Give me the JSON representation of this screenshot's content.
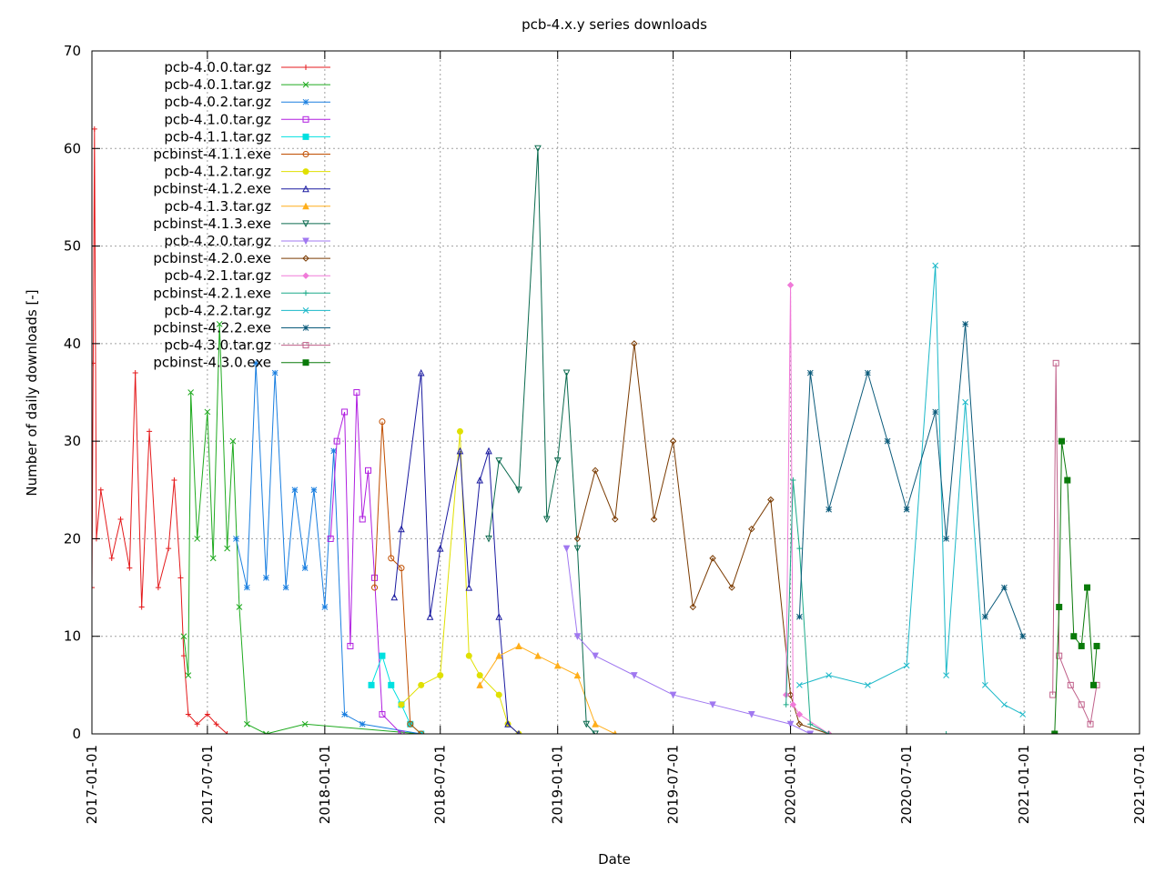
{
  "chart_data": {
    "type": "line",
    "title": "pcb-4.x.y series downloads",
    "xlabel": "Date",
    "ylabel": "Number of daily downloads [-]",
    "xlim": [
      "2017-01-01",
      "2021-07-01"
    ],
    "ylim": [
      0,
      70
    ],
    "x_ticks": [
      "2017-01-01",
      "2017-07-01",
      "2018-01-01",
      "2018-07-01",
      "2019-01-01",
      "2019-07-01",
      "2020-01-01",
      "2020-07-01",
      "2021-01-01",
      "2021-07-01"
    ],
    "y_ticks": [
      "0",
      "10",
      "20",
      "30",
      "40",
      "50",
      "60",
      "70"
    ],
    "grid": true,
    "legend_position": "top-left",
    "series": [
      {
        "name": "pcb-4.0.0.tar.gz",
        "color": "#e41a1c",
        "marker": "plus",
        "points": [
          [
            "2016-12-25",
            1
          ],
          [
            "2017-01-01",
            15
          ],
          [
            "2017-01-03",
            38
          ],
          [
            "2017-01-05",
            62
          ],
          [
            "2017-01-08",
            20
          ],
          [
            "2017-01-15",
            25
          ],
          [
            "2017-02-01",
            18
          ],
          [
            "2017-02-15",
            22
          ],
          [
            "2017-03-01",
            17
          ],
          [
            "2017-03-10",
            37
          ],
          [
            "2017-03-20",
            13
          ],
          [
            "2017-04-01",
            31
          ],
          [
            "2017-04-15",
            15
          ],
          [
            "2017-05-01",
            19
          ],
          [
            "2017-05-10",
            26
          ],
          [
            "2017-05-20",
            16
          ],
          [
            "2017-05-25",
            8
          ],
          [
            "2017-06-01",
            2
          ],
          [
            "2017-06-15",
            1
          ],
          [
            "2017-07-01",
            2
          ],
          [
            "2017-07-15",
            1
          ],
          [
            "2017-08-01",
            0
          ]
        ]
      },
      {
        "name": "pcb-4.0.1.tar.gz",
        "color": "#1faa1f",
        "marker": "x",
        "points": [
          [
            "2017-05-25",
            10
          ],
          [
            "2017-06-01",
            6
          ],
          [
            "2017-06-05",
            35
          ],
          [
            "2017-06-15",
            20
          ],
          [
            "2017-07-01",
            33
          ],
          [
            "2017-07-10",
            18
          ],
          [
            "2017-07-20",
            42
          ],
          [
            "2017-08-01",
            19
          ],
          [
            "2017-08-10",
            30
          ],
          [
            "2017-08-20",
            13
          ],
          [
            "2017-09-01",
            1
          ],
          [
            "2017-10-01",
            0
          ],
          [
            "2017-12-01",
            1
          ],
          [
            "2018-06-01",
            0
          ]
        ]
      },
      {
        "name": "pcb-4.0.2.tar.gz",
        "color": "#1a7fe0",
        "marker": "star",
        "points": [
          [
            "2017-08-15",
            20
          ],
          [
            "2017-09-01",
            15
          ],
          [
            "2017-09-15",
            38
          ],
          [
            "2017-10-01",
            16
          ],
          [
            "2017-10-15",
            37
          ],
          [
            "2017-11-01",
            15
          ],
          [
            "2017-11-15",
            25
          ],
          [
            "2017-12-01",
            17
          ],
          [
            "2017-12-15",
            25
          ],
          [
            "2018-01-01",
            13
          ],
          [
            "2018-01-15",
            29
          ],
          [
            "2018-02-01",
            2
          ],
          [
            "2018-03-01",
            1
          ],
          [
            "2018-06-01",
            0
          ]
        ]
      },
      {
        "name": "pcb-4.1.0.tar.gz",
        "color": "#b01ee0",
        "marker": "box",
        "points": [
          [
            "2018-01-10",
            20
          ],
          [
            "2018-01-20",
            30
          ],
          [
            "2018-02-01",
            33
          ],
          [
            "2018-02-10",
            9
          ],
          [
            "2018-02-20",
            35
          ],
          [
            "2018-03-01",
            22
          ],
          [
            "2018-03-10",
            27
          ],
          [
            "2018-03-20",
            16
          ],
          [
            "2018-04-01",
            2
          ],
          [
            "2018-05-01",
            0
          ]
        ]
      },
      {
        "name": "pcb-4.1.1.tar.gz",
        "color": "#00e0e0",
        "marker": "fbox",
        "points": [
          [
            "2018-03-15",
            5
          ],
          [
            "2018-04-01",
            8
          ],
          [
            "2018-04-15",
            5
          ],
          [
            "2018-05-01",
            3
          ],
          [
            "2018-05-15",
            1
          ],
          [
            "2018-06-01",
            0
          ]
        ]
      },
      {
        "name": "pcbinst-4.1.1.exe",
        "color": "#c04e00",
        "marker": "circle",
        "points": [
          [
            "2018-03-20",
            15
          ],
          [
            "2018-04-01",
            32
          ],
          [
            "2018-04-15",
            18
          ],
          [
            "2018-05-01",
            17
          ],
          [
            "2018-05-15",
            1
          ],
          [
            "2018-06-01",
            0
          ]
        ]
      },
      {
        "name": "pcb-4.1.2.tar.gz",
        "color": "#e0e000",
        "marker": "fcircle",
        "points": [
          [
            "2018-05-01",
            3
          ],
          [
            "2018-06-01",
            5
          ],
          [
            "2018-07-01",
            6
          ],
          [
            "2018-08-01",
            31
          ],
          [
            "2018-08-15",
            8
          ],
          [
            "2018-09-01",
            6
          ],
          [
            "2018-10-01",
            4
          ],
          [
            "2018-10-15",
            1
          ],
          [
            "2018-11-01",
            0
          ]
        ]
      },
      {
        "name": "pcbinst-4.1.2.exe",
        "color": "#1a1aa0",
        "marker": "tri",
        "points": [
          [
            "2018-04-20",
            14
          ],
          [
            "2018-05-01",
            21
          ],
          [
            "2018-06-01",
            37
          ],
          [
            "2018-06-15",
            12
          ],
          [
            "2018-07-01",
            19
          ],
          [
            "2018-08-01",
            29
          ],
          [
            "2018-08-15",
            15
          ],
          [
            "2018-09-01",
            26
          ],
          [
            "2018-09-15",
            29
          ],
          [
            "2018-10-01",
            12
          ],
          [
            "2018-10-15",
            1
          ],
          [
            "2018-11-01",
            0
          ]
        ]
      },
      {
        "name": "pcb-4.1.3.tar.gz",
        "color": "#ffae1a",
        "marker": "ftri",
        "points": [
          [
            "2018-09-01",
            5
          ],
          [
            "2018-10-01",
            8
          ],
          [
            "2018-11-01",
            9
          ],
          [
            "2018-12-01",
            8
          ],
          [
            "2019-01-01",
            7
          ],
          [
            "2019-02-01",
            6
          ],
          [
            "2019-03-01",
            1
          ],
          [
            "2019-04-01",
            0
          ]
        ]
      },
      {
        "name": "pcbinst-4.1.3.exe",
        "color": "#0a6a4e",
        "marker": "dtri",
        "points": [
          [
            "2018-09-15",
            20
          ],
          [
            "2018-10-01",
            28
          ],
          [
            "2018-11-01",
            25
          ],
          [
            "2018-12-01",
            60
          ],
          [
            "2018-12-15",
            22
          ],
          [
            "2019-01-01",
            28
          ],
          [
            "2019-01-15",
            37
          ],
          [
            "2019-02-01",
            19
          ],
          [
            "2019-02-15",
            1
          ],
          [
            "2019-03-01",
            0
          ]
        ]
      },
      {
        "name": "pcb-4.2.0.tar.gz",
        "color": "#a078f0",
        "marker": "fdtri",
        "points": [
          [
            "2019-01-15",
            19
          ],
          [
            "2019-02-01",
            10
          ],
          [
            "2019-03-01",
            8
          ],
          [
            "2019-05-01",
            6
          ],
          [
            "2019-07-01",
            4
          ],
          [
            "2019-09-01",
            3
          ],
          [
            "2019-11-01",
            2
          ],
          [
            "2020-01-01",
            1
          ],
          [
            "2020-02-01",
            0
          ]
        ]
      },
      {
        "name": "pcbinst-4.2.0.exe",
        "color": "#7a3a00",
        "marker": "diamond",
        "points": [
          [
            "2019-02-01",
            20
          ],
          [
            "2019-03-01",
            27
          ],
          [
            "2019-04-01",
            22
          ],
          [
            "2019-05-01",
            40
          ],
          [
            "2019-06-01",
            22
          ],
          [
            "2019-07-01",
            30
          ],
          [
            "2019-08-01",
            13
          ],
          [
            "2019-09-01",
            18
          ],
          [
            "2019-10-01",
            15
          ],
          [
            "2019-11-01",
            21
          ],
          [
            "2019-12-01",
            24
          ],
          [
            "2020-01-01",
            4
          ],
          [
            "2020-01-15",
            1
          ],
          [
            "2020-03-01",
            0
          ]
        ]
      },
      {
        "name": "pcb-4.2.1.tar.gz",
        "color": "#f07ad8",
        "marker": "fdiamond",
        "points": [
          [
            "2019-12-25",
            4
          ],
          [
            "2020-01-01",
            46
          ],
          [
            "2020-01-05",
            3
          ],
          [
            "2020-01-15",
            2
          ],
          [
            "2020-03-01",
            0
          ]
        ]
      },
      {
        "name": "pcbinst-4.2.1.exe",
        "color": "#1aaa88",
        "marker": "plus",
        "points": [
          [
            "2019-12-25",
            3
          ],
          [
            "2020-01-05",
            26
          ],
          [
            "2020-01-15",
            19
          ],
          [
            "2020-02-01",
            1
          ],
          [
            "2020-03-01",
            0
          ],
          [
            "2020-09-01",
            0
          ]
        ]
      },
      {
        "name": "pcb-4.2.2.tar.gz",
        "color": "#1ab8c8",
        "marker": "x",
        "points": [
          [
            "2020-01-15",
            5
          ],
          [
            "2020-03-01",
            6
          ],
          [
            "2020-05-01",
            5
          ],
          [
            "2020-07-01",
            7
          ],
          [
            "2020-08-15",
            48
          ],
          [
            "2020-09-01",
            6
          ],
          [
            "2020-10-01",
            34
          ],
          [
            "2020-11-01",
            5
          ],
          [
            "2020-12-01",
            3
          ],
          [
            "2020-12-30",
            2
          ]
        ]
      },
      {
        "name": "pcbinst-4.2.2.exe",
        "color": "#0a5a7a",
        "marker": "star",
        "points": [
          [
            "2020-01-15",
            12
          ],
          [
            "2020-02-01",
            37
          ],
          [
            "2020-03-01",
            23
          ],
          [
            "2020-05-01",
            37
          ],
          [
            "2020-06-01",
            30
          ],
          [
            "2020-07-01",
            23
          ],
          [
            "2020-08-15",
            33
          ],
          [
            "2020-09-01",
            20
          ],
          [
            "2020-10-01",
            42
          ],
          [
            "2020-11-01",
            12
          ],
          [
            "2020-12-01",
            15
          ],
          [
            "2020-12-30",
            10
          ]
        ]
      },
      {
        "name": "pcb-4.3.0.tar.gz",
        "color": "#c0608a",
        "marker": "box",
        "points": [
          [
            "2021-02-15",
            4
          ],
          [
            "2021-02-20",
            38
          ],
          [
            "2021-02-25",
            8
          ],
          [
            "2021-03-15",
            5
          ],
          [
            "2021-04-01",
            3
          ],
          [
            "2021-04-15",
            1
          ],
          [
            "2021-04-25",
            5
          ]
        ]
      },
      {
        "name": "pcbinst-4.3.0.exe",
        "color": "#0a7a0a",
        "marker": "fbox",
        "points": [
          [
            "2021-02-18",
            0
          ],
          [
            "2021-02-25",
            13
          ],
          [
            "2021-03-01",
            30
          ],
          [
            "2021-03-10",
            26
          ],
          [
            "2021-03-20",
            10
          ],
          [
            "2021-04-01",
            9
          ],
          [
            "2021-04-10",
            15
          ],
          [
            "2021-04-20",
            5
          ],
          [
            "2021-04-25",
            9
          ]
        ]
      }
    ]
  }
}
